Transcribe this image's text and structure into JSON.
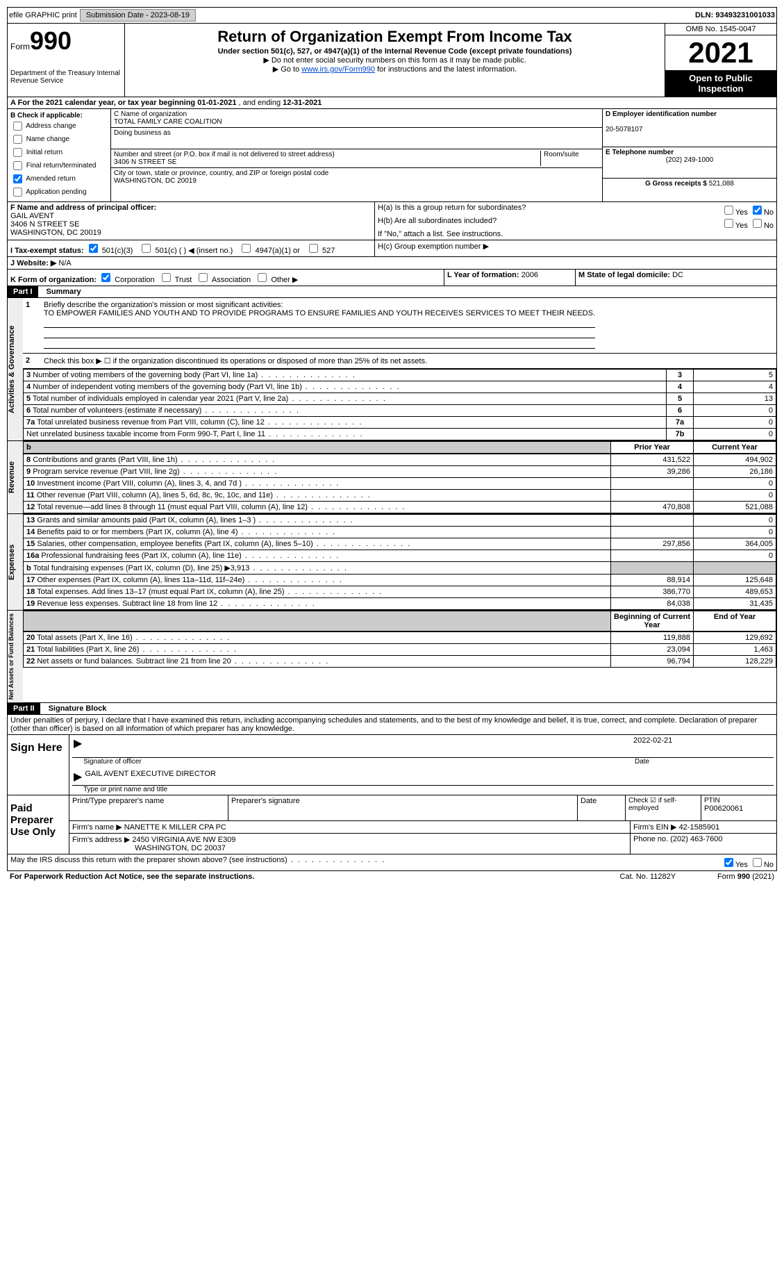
{
  "topbar": {
    "efile": "efile GRAPHIC print",
    "submission_label": "Submission Date - 2023-08-19",
    "dln": "DLN: 93493231001033"
  },
  "header": {
    "form_prefix": "Form",
    "form_num": "990",
    "dept": "Department of the Treasury\nInternal Revenue Service",
    "title": "Return of Organization Exempt From Income Tax",
    "subtitle": "Under section 501(c), 527, or 4947(a)(1) of the Internal Revenue Code (except private foundations)",
    "note1": "▶ Do not enter social security numbers on this form as it may be made public.",
    "note2_pre": "▶ Go to ",
    "note2_link": "www.irs.gov/Form990",
    "note2_post": " for instructions and the latest information.",
    "omb": "OMB No. 1545-0047",
    "year": "2021",
    "inspect": "Open to Public Inspection"
  },
  "sectionA": {
    "text_pre": "A For the 2021 calendar year, or tax year beginning ",
    "begin": "01-01-2021",
    "mid": " , and ending ",
    "end": "12-31-2021"
  },
  "colB": {
    "header": "B Check if applicable:",
    "items": [
      "Address change",
      "Name change",
      "Initial return",
      "Final return/terminated",
      "Amended return",
      "Application pending"
    ],
    "checked_index": 4
  },
  "colC": {
    "name_label": "C Name of organization",
    "name": "TOTAL FAMILY CARE COALITION",
    "dba_label": "Doing business as",
    "addr_label": "Number and street (or P.O. box if mail is not delivered to street address)",
    "room_label": "Room/suite",
    "addr": "3406 N STREET SE",
    "city_label": "City or town, state or province, country, and ZIP or foreign postal code",
    "city": "WASHINGTON, DC  20019"
  },
  "colD": {
    "ein_label": "D Employer identification number",
    "ein": "20-5078107",
    "tel_label": "E Telephone number",
    "tel": "(202) 249-1000",
    "gross_label": "G Gross receipts $",
    "gross": "521,088"
  },
  "sectionF": {
    "label": "F Name and address of principal officer:",
    "name": "GAIL AVENT",
    "addr1": "3406 N STREET SE",
    "addr2": "WASHINGTON, DC  20019"
  },
  "sectionH": {
    "ha_label": "H(a)  Is this a group return for subordinates?",
    "hb_label": "H(b)  Are all subordinates included?",
    "hb_note": "If \"No,\" attach a list. See instructions.",
    "hc_label": "H(c)  Group exemption number ▶",
    "yes": "Yes",
    "no": "No"
  },
  "sectionI": {
    "label": "I  Tax-exempt status:",
    "opts": [
      "501(c)(3)",
      "501(c) (  ) ◀ (insert no.)",
      "4947(a)(1) or",
      "527"
    ]
  },
  "sectionJ": {
    "label": "J  Website: ▶",
    "value": "N/A"
  },
  "sectionK": {
    "label": "K Form of organization:",
    "opts": [
      "Corporation",
      "Trust",
      "Association",
      "Other ▶"
    ]
  },
  "sectionL": {
    "label": "L Year of formation:",
    "value": "2006"
  },
  "sectionM": {
    "label": "M State of legal domicile:",
    "value": "DC"
  },
  "partI": {
    "title": "Part I",
    "name": "Summary",
    "mission_label": "Briefly describe the organization's mission or most significant activities:",
    "mission": "TO EMPOWER FAMILIES AND YOUTH AND TO PROVIDE PROGRAMS TO ENSURE FAMILIES AND YOUTH RECEIVES SERVICES TO MEET THEIR NEEDS.",
    "line2": "Check this box ▶ ☐  if the organization discontinued its operations or disposed of more than 25% of its net assets.",
    "col_prior": "Prior Year",
    "col_current": "Current Year",
    "col_begin": "Beginning of Current Year",
    "col_end": "End of Year",
    "groups": {
      "activities": "Activities & Governance",
      "revenue": "Revenue",
      "expenses": "Expenses",
      "net": "Net Assets or Fund Balances"
    },
    "rows_top": [
      {
        "n": "3",
        "t": "Number of voting members of the governing body (Part VI, line 1a)",
        "box": "3",
        "v": "5"
      },
      {
        "n": "4",
        "t": "Number of independent voting members of the governing body (Part VI, line 1b)",
        "box": "4",
        "v": "4"
      },
      {
        "n": "5",
        "t": "Total number of individuals employed in calendar year 2021 (Part V, line 2a)",
        "box": "5",
        "v": "13"
      },
      {
        "n": "6",
        "t": "Total number of volunteers (estimate if necessary)",
        "box": "6",
        "v": "0"
      },
      {
        "n": "7a",
        "t": "Total unrelated business revenue from Part VIII, column (C), line 12",
        "box": "7a",
        "v": "0"
      },
      {
        "n": "",
        "t": "Net unrelated business taxable income from Form 990-T, Part I, line 11",
        "box": "7b",
        "v": "0"
      }
    ],
    "rows_rev": [
      {
        "n": "8",
        "t": "Contributions and grants (Part VIII, line 1h)",
        "p": "431,522",
        "c": "494,902"
      },
      {
        "n": "9",
        "t": "Program service revenue (Part VIII, line 2g)",
        "p": "39,286",
        "c": "26,186"
      },
      {
        "n": "10",
        "t": "Investment income (Part VIII, column (A), lines 3, 4, and 7d )",
        "p": "",
        "c": "0"
      },
      {
        "n": "11",
        "t": "Other revenue (Part VIII, column (A), lines 5, 6d, 8c, 9c, 10c, and 11e)",
        "p": "",
        "c": "0"
      },
      {
        "n": "12",
        "t": "Total revenue—add lines 8 through 11 (must equal Part VIII, column (A), line 12)",
        "p": "470,808",
        "c": "521,088"
      }
    ],
    "rows_exp": [
      {
        "n": "13",
        "t": "Grants and similar amounts paid (Part IX, column (A), lines 1–3 )",
        "p": "",
        "c": "0"
      },
      {
        "n": "14",
        "t": "Benefits paid to or for members (Part IX, column (A), line 4)",
        "p": "",
        "c": "0"
      },
      {
        "n": "15",
        "t": "Salaries, other compensation, employee benefits (Part IX, column (A), lines 5–10)",
        "p": "297,856",
        "c": "364,005"
      },
      {
        "n": "16a",
        "t": "Professional fundraising fees (Part IX, column (A), line 11e)",
        "p": "",
        "c": "0"
      },
      {
        "n": "b",
        "t": "Total fundraising expenses (Part IX, column (D), line 25) ▶3,913",
        "p": "SHADE",
        "c": "SHADE"
      },
      {
        "n": "17",
        "t": "Other expenses (Part IX, column (A), lines 11a–11d, 11f–24e)",
        "p": "88,914",
        "c": "125,648"
      },
      {
        "n": "18",
        "t": "Total expenses. Add lines 13–17 (must equal Part IX, column (A), line 25)",
        "p": "386,770",
        "c": "489,653"
      },
      {
        "n": "19",
        "t": "Revenue less expenses. Subtract line 18 from line 12",
        "p": "84,038",
        "c": "31,435"
      }
    ],
    "rows_net": [
      {
        "n": "20",
        "t": "Total assets (Part X, line 16)",
        "p": "119,888",
        "c": "129,692"
      },
      {
        "n": "21",
        "t": "Total liabilities (Part X, line 26)",
        "p": "23,094",
        "c": "1,463"
      },
      {
        "n": "22",
        "t": "Net assets or fund balances. Subtract line 21 from line 20",
        "p": "96,794",
        "c": "128,229"
      }
    ]
  },
  "partII": {
    "title": "Part II",
    "name": "Signature Block",
    "penalties": "Under penalties of perjury, I declare that I have examined this return, including accompanying schedules and statements, and to the best of my knowledge and belief, it is true, correct, and complete. Declaration of preparer (other than officer) is based on all information of which preparer has any knowledge.",
    "sign_here": "Sign Here",
    "sig_officer": "Signature of officer",
    "sig_date": "2022-02-21",
    "date_label": "Date",
    "typed_name": "GAIL AVENT EXECUTIVE DIRECTOR",
    "typed_label": "Type or print name and title",
    "paid": "Paid Preparer Use Only",
    "prep_name_label": "Print/Type preparer's name",
    "prep_sig_label": "Preparer's signature",
    "check_if": "Check ☑ if self-employed",
    "ptin_label": "PTIN",
    "ptin": "P00620061",
    "firm_name_label": "Firm's name    ▶",
    "firm_name": "NANETTE K MILLER CPA PC",
    "firm_ein_label": "Firm's EIN ▶",
    "firm_ein": "42-1585901",
    "firm_addr_label": "Firm's address ▶",
    "firm_addr1": "2450 VIRGINIA AVE NW E309",
    "firm_addr2": "WASHINGTON, DC  20037",
    "phone_label": "Phone no.",
    "phone": "(202) 463-7600",
    "discuss": "May the IRS discuss this return with the preparer shown above? (see instructions)"
  },
  "footer": {
    "pra": "For Paperwork Reduction Act Notice, see the separate instructions.",
    "cat": "Cat. No. 11282Y",
    "form": "Form 990 (2021)"
  }
}
